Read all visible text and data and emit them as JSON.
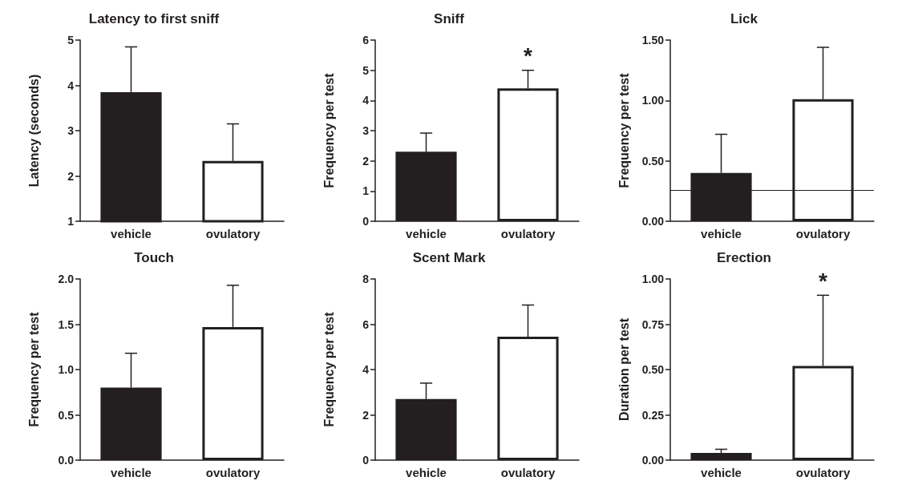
{
  "chart_data": [
    {
      "type": "bar",
      "title": "Latency to first sniff",
      "ylabel": "Latency (seconds)",
      "categories": [
        "vehicle",
        "ovulatory"
      ],
      "values": [
        3.85,
        2.33
      ],
      "errors": [
        [
          3.85,
          4.85
        ],
        [
          2.33,
          3.15
        ]
      ],
      "colors": [
        "#231f20",
        "#ffffff"
      ],
      "ylim": [
        1,
        5
      ],
      "yticks": [
        1,
        2,
        3,
        4,
        5
      ],
      "grid": false
    },
    {
      "type": "bar",
      "title": "Sniff",
      "ylabel": "Frequency per test",
      "categories": [
        "vehicle",
        "ovulatory"
      ],
      "values": [
        2.3,
        4.4
      ],
      "errors": [
        [
          2.3,
          2.92
        ],
        [
          4.4,
          5.0
        ]
      ],
      "colors": [
        "#231f20",
        "#ffffff"
      ],
      "ylim": [
        0,
        6
      ],
      "yticks": [
        0,
        1,
        2,
        3,
        4,
        5,
        6
      ],
      "grid": false,
      "annotations": [
        "*"
      ]
    },
    {
      "type": "bar",
      "title": "Lick",
      "ylabel": "Frequency per test",
      "categories": [
        "vehicle",
        "ovulatory"
      ],
      "values": [
        0.4,
        1.01
      ],
      "errors": [
        [
          0.4,
          0.72
        ],
        [
          1.01,
          1.44
        ]
      ],
      "colors": [
        "#231f20",
        "#ffffff"
      ],
      "ylim": [
        0,
        1.5
      ],
      "yticks": [
        {
          "value": 0,
          "label": "0.00"
        },
        {
          "value": 0.5,
          "label": "0.50"
        },
        {
          "value": 1,
          "label": "1.00"
        },
        {
          "value": 1.5,
          "label": "1.50"
        }
      ],
      "grid": false,
      "ref_lines": [
        {
          "axis": "y",
          "value": 0.26,
          "label": null
        }
      ]
    },
    {
      "type": "bar",
      "title": "Touch",
      "ylabel": "Frequency per test",
      "categories": [
        "vehicle",
        "ovulatory"
      ],
      "values": [
        0.8,
        1.47
      ],
      "errors": [
        [
          0.8,
          1.18
        ],
        [
          1.47,
          1.93
        ]
      ],
      "colors": [
        "#231f20",
        "#ffffff"
      ],
      "ylim": [
        0,
        2
      ],
      "yticks": [
        {
          "value": 0,
          "label": "0.0"
        },
        {
          "value": 0.5,
          "label": "0.5"
        },
        {
          "value": 1,
          "label": "1.0"
        },
        {
          "value": 1.5,
          "label": "1.5"
        },
        {
          "value": 2,
          "label": "2.0"
        }
      ],
      "grid": false
    },
    {
      "type": "bar",
      "title": "Scent Mark",
      "ylabel": "Frequency per test",
      "categories": [
        "vehicle",
        "ovulatory"
      ],
      "values": [
        2.7,
        5.45
      ],
      "errors": [
        [
          2.7,
          3.4
        ],
        [
          5.45,
          6.85
        ]
      ],
      "colors": [
        "#231f20",
        "#ffffff"
      ],
      "ylim": [
        0,
        8
      ],
      "yticks": [
        0,
        2,
        4,
        6,
        8
      ],
      "grid": false
    },
    {
      "type": "bar",
      "title": "Erection",
      "ylabel": "Duration per test",
      "categories": [
        "vehicle",
        "ovulatory"
      ],
      "values": [
        0.04,
        0.52
      ],
      "errors": [
        [
          0.04,
          0.06
        ],
        [
          0.52,
          0.91
        ]
      ],
      "colors": [
        "#231f20",
        "#ffffff"
      ],
      "ylim": [
        0,
        1
      ],
      "yticks": [
        {
          "value": 0,
          "label": "0.00"
        },
        {
          "value": 0.25,
          "label": "0.25"
        },
        {
          "value": 0.5,
          "label": "0.50"
        },
        {
          "value": 0.75,
          "label": "0.75"
        },
        {
          "value": 1,
          "label": "1.00"
        }
      ],
      "grid": false,
      "annotations": [
        "*"
      ]
    }
  ]
}
